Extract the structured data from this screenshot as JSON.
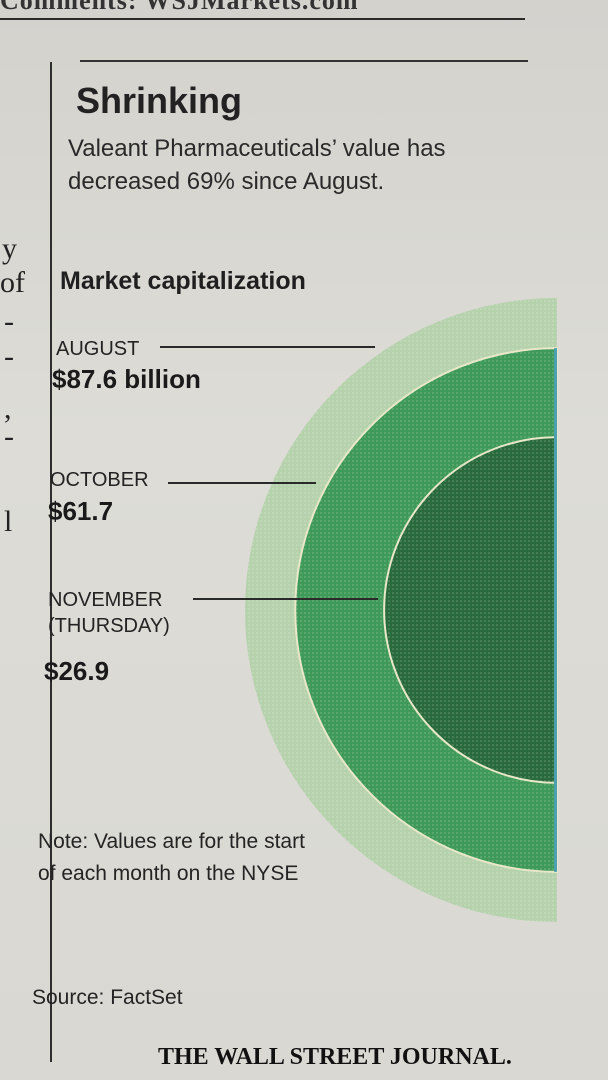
{
  "header_fragment": "Comments: WSJMarkets.com",
  "left_column_fragments": [
    "y",
    "of",
    "-",
    "-",
    ",",
    "-",
    "l"
  ],
  "title": "Shrinking",
  "subtitle": "Valeant Pharmaceuticals’ value has decreased 69% since August.",
  "chart_data": {
    "type": "pie",
    "shape": "concentric half-circles, area proportional to value",
    "title": "Market capitalization",
    "series": [
      {
        "month": "AUGUST",
        "label": "$87.6 billion",
        "value": 87.6,
        "color": "#b6d2ad"
      },
      {
        "month": "OCTOBER",
        "label": "$61.7",
        "value": 61.7,
        "color": "#3f9a5a"
      },
      {
        "month": "NOVEMBER\n(THURSDAY)",
        "label": "$26.9",
        "value": 26.9,
        "color": "#2a6b3e"
      }
    ],
    "unit": "billion",
    "edge_color": "#4aa0b0",
    "inner_edge_color": "#e8e7c8"
  },
  "note": "Note: Values are for the start of each month on the NYSE",
  "source": "Source: FactSet",
  "brand": "THE WALL STREET JOURNAL."
}
